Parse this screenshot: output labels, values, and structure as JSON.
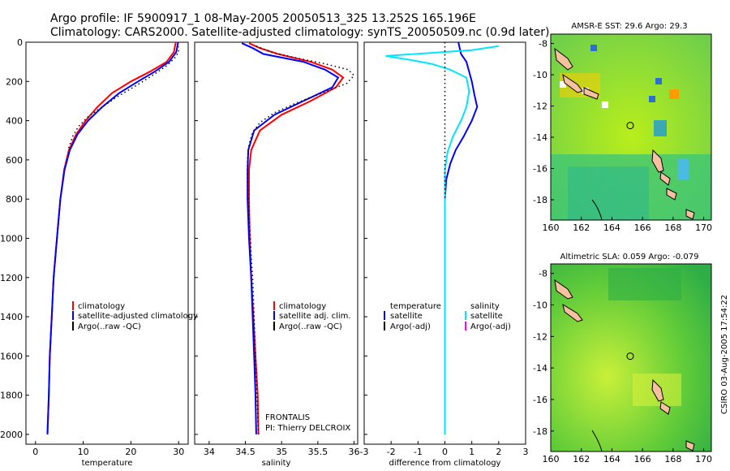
{
  "header": {
    "line1": "Argo profile: IF 5900917_1 08-May-2005 20050513_325 13.252S 165.196E",
    "line2": "Climatology: CARS2000. Satellite-adjusted climatology: synTS_20050509.nc (0.9d later)"
  },
  "side_note": "CSIRO 03-Aug-2005 17:54:22",
  "frontalis": {
    "line1": "FRONTALIS",
    "line2": "PI: Thierry DELCROIX"
  },
  "colors": {
    "climatology": "#ff0000",
    "satellite": "#0000ff",
    "argo": "#000000",
    "satellite_sal": "#00e5ff",
    "argo_sal": "#ff00ff"
  },
  "chart_data": [
    {
      "type": "line",
      "name": "temperature profile",
      "xlabel": "temperature",
      "ylabel": "",
      "xlim": [
        -2,
        32
      ],
      "ylim": [
        2050,
        0
      ],
      "xticks": [
        0,
        10,
        20,
        30
      ],
      "yticks": [
        0,
        200,
        400,
        600,
        800,
        1000,
        1200,
        1400,
        1600,
        1800,
        2000
      ],
      "legend": [
        "climatology",
        "satellite-adjusted climatology",
        "Argo(..raw -QC)"
      ],
      "series": [
        {
          "name": "climatology",
          "style": "solid",
          "color": "#ff0000",
          "points": [
            [
              29.4,
              0
            ],
            [
              29.0,
              50
            ],
            [
              27.5,
              100
            ],
            [
              24.0,
              150
            ],
            [
              20.0,
              200
            ],
            [
              16.0,
              260
            ],
            [
              13.0,
              330
            ],
            [
              10.5,
              400
            ],
            [
              8.5,
              470
            ],
            [
              7.0,
              550
            ],
            [
              6.0,
              650
            ],
            [
              5.2,
              800
            ],
            [
              4.5,
              1000
            ],
            [
              3.8,
              1200
            ],
            [
              3.4,
              1400
            ],
            [
              3.0,
              1600
            ],
            [
              2.8,
              1800
            ],
            [
              2.5,
              2000
            ]
          ]
        },
        {
          "name": "satellite-adjusted climatology",
          "style": "solid",
          "color": "#0000ff",
          "points": [
            [
              29.9,
              0
            ],
            [
              29.5,
              50
            ],
            [
              28.0,
              100
            ],
            [
              25.0,
              150
            ],
            [
              21.5,
              200
            ],
            [
              17.5,
              260
            ],
            [
              14.0,
              330
            ],
            [
              11.0,
              400
            ],
            [
              8.8,
              470
            ],
            [
              7.2,
              550
            ],
            [
              6.1,
              650
            ],
            [
              5.2,
              800
            ],
            [
              4.5,
              1000
            ],
            [
              3.8,
              1200
            ],
            [
              3.4,
              1400
            ],
            [
              3.0,
              1600
            ],
            [
              2.8,
              1800
            ],
            [
              2.5,
              2000
            ]
          ]
        },
        {
          "name": "Argo(..raw -QC)",
          "style": "dotted",
          "color": "#000000",
          "points": [
            [
              29.9,
              20
            ],
            [
              30.0,
              50
            ],
            [
              29.2,
              80
            ],
            [
              27.5,
              120
            ],
            [
              24.5,
              170
            ],
            [
              20.5,
              230
            ],
            [
              17.0,
              280
            ],
            [
              14.0,
              330
            ],
            [
              11.0,
              380
            ],
            [
              9.0,
              430
            ],
            [
              7.8,
              480
            ],
            [
              6.8,
              550
            ]
          ]
        }
      ]
    },
    {
      "type": "line",
      "name": "salinity profile",
      "xlabel": "salinity",
      "ylabel": "",
      "xlim": [
        33.8,
        36.05
      ],
      "ylim": [
        2050,
        0
      ],
      "xticks": [
        34,
        34.5,
        35,
        35.5,
        36
      ],
      "yticks": [
        0,
        200,
        400,
        600,
        800,
        1000,
        1200,
        1400,
        1600,
        1800,
        2000
      ],
      "legend": [
        "climatology",
        "satellite adj. clim.",
        "Argo(..raw -QC)"
      ],
      "series": [
        {
          "name": "climatology",
          "style": "solid",
          "color": "#ff0000",
          "points": [
            [
              34.55,
              5
            ],
            [
              34.7,
              30
            ],
            [
              34.95,
              60
            ],
            [
              35.4,
              100
            ],
            [
              35.7,
              140
            ],
            [
              35.85,
              180
            ],
            [
              35.75,
              230
            ],
            [
              35.4,
              300
            ],
            [
              35.0,
              370
            ],
            [
              34.7,
              450
            ],
            [
              34.58,
              550
            ],
            [
              34.55,
              650
            ],
            [
              34.55,
              800
            ],
            [
              34.56,
              1000
            ],
            [
              34.58,
              1200
            ],
            [
              34.61,
              1400
            ],
            [
              34.64,
              1600
            ],
            [
              34.67,
              1800
            ],
            [
              34.68,
              2000
            ]
          ]
        },
        {
          "name": "satellite adj. clim.",
          "style": "solid",
          "color": "#0000ff",
          "points": [
            [
              34.45,
              5
            ],
            [
              34.6,
              30
            ],
            [
              34.75,
              60
            ],
            [
              35.3,
              100
            ],
            [
              35.6,
              140
            ],
            [
              35.78,
              180
            ],
            [
              35.7,
              230
            ],
            [
              35.3,
              300
            ],
            [
              34.9,
              370
            ],
            [
              34.62,
              450
            ],
            [
              34.54,
              550
            ],
            [
              34.53,
              650
            ],
            [
              34.53,
              800
            ],
            [
              34.55,
              1000
            ],
            [
              34.58,
              1200
            ],
            [
              34.6,
              1400
            ],
            [
              34.62,
              1600
            ],
            [
              34.64,
              1800
            ],
            [
              34.65,
              2000
            ]
          ]
        },
        {
          "name": "Argo(..raw -QC)",
          "style": "dotted",
          "color": "#000000",
          "points": [
            [
              34.65,
              20
            ],
            [
              34.85,
              50
            ],
            [
              35.2,
              80
            ],
            [
              35.6,
              110
            ],
            [
              35.92,
              140
            ],
            [
              36.0,
              170
            ],
            [
              35.9,
              210
            ],
            [
              35.55,
              260
            ],
            [
              35.2,
              310
            ],
            [
              34.9,
              360
            ],
            [
              34.7,
              410
            ],
            [
              34.6,
              460
            ],
            [
              34.55,
              520
            ],
            [
              34.53,
              600
            ],
            [
              34.53,
              700
            ],
            [
              34.54,
              800
            ],
            [
              34.55,
              900
            ],
            [
              34.57,
              1000
            ],
            [
              34.58,
              1100
            ],
            [
              34.6,
              1200
            ],
            [
              34.61,
              1300
            ],
            [
              34.62,
              1400
            ],
            [
              34.63,
              1500
            ],
            [
              34.64,
              1600
            ],
            [
              34.65,
              1700
            ],
            [
              34.66,
              1800
            ],
            [
              34.67,
              1900
            ],
            [
              34.68,
              2000
            ]
          ]
        }
      ]
    },
    {
      "type": "line",
      "name": "difference from climatology",
      "xlabel": "difference from climatology",
      "ylabel": "",
      "xlim": [
        -3,
        3
      ],
      "ylim": [
        2050,
        0
      ],
      "xticks": [
        -3,
        -2,
        -1,
        0,
        1,
        2,
        3
      ],
      "legend_temperature": [
        "temperature",
        "satellite",
        "Argo(-adj)"
      ],
      "legend_salinity": [
        "salinity",
        "satellite",
        "Argo(-adj)"
      ],
      "series": [
        {
          "name": "temperature satellite",
          "style": "solid",
          "color": "#0000ff",
          "points": [
            [
              0.5,
              0
            ],
            [
              0.6,
              60
            ],
            [
              0.8,
              100
            ],
            [
              0.9,
              150
            ],
            [
              1.0,
              200
            ],
            [
              1.1,
              270
            ],
            [
              1.2,
              330
            ],
            [
              1.0,
              400
            ],
            [
              0.7,
              480
            ],
            [
              0.4,
              550
            ],
            [
              0.2,
              620
            ],
            [
              0.05,
              700
            ],
            [
              0.0,
              800
            ],
            [
              0.0,
              2000
            ]
          ]
        },
        {
          "name": "salinity satellite",
          "style": "solid",
          "color": "#00e5ff",
          "points": [
            [
              2.0,
              20
            ],
            [
              1.0,
              40
            ],
            [
              -2.2,
              70
            ],
            [
              -1.3,
              90
            ],
            [
              -0.5,
              110
            ],
            [
              0.2,
              140
            ],
            [
              0.8,
              180
            ],
            [
              0.9,
              250
            ],
            [
              0.8,
              330
            ],
            [
              0.6,
              400
            ],
            [
              0.3,
              480
            ],
            [
              0.1,
              560
            ],
            [
              0.0,
              650
            ],
            [
              0.0,
              2000
            ]
          ]
        },
        {
          "name": "zero reference",
          "style": "dotted",
          "color": "#000000",
          "points": [
            [
              0,
              0
            ],
            [
              0,
              800
            ]
          ]
        }
      ]
    },
    {
      "type": "heatmap",
      "name": "sst map",
      "title": "AMSR-E SST: 29.6 Argo: 29.3",
      "xlim": [
        160,
        170.5
      ],
      "ylim": [
        -19.3,
        -7.4
      ],
      "xticks": [
        160,
        162,
        164,
        166,
        168,
        170
      ],
      "yticks": [
        -8,
        -10,
        -12,
        -14,
        -16,
        -18
      ],
      "float_position": [
        165.196,
        -13.252
      ]
    },
    {
      "type": "heatmap",
      "name": "sla map",
      "title": "Altimetric SLA: 0.059 Argo: -0.079",
      "xlim": [
        160,
        170.5
      ],
      "ylim": [
        -19.3,
        -7.4
      ],
      "xticks": [
        160,
        162,
        164,
        166,
        168,
        170
      ],
      "yticks": [
        -8,
        -10,
        -12,
        -14,
        -16,
        -18
      ],
      "float_position": [
        165.196,
        -13.252
      ]
    }
  ]
}
